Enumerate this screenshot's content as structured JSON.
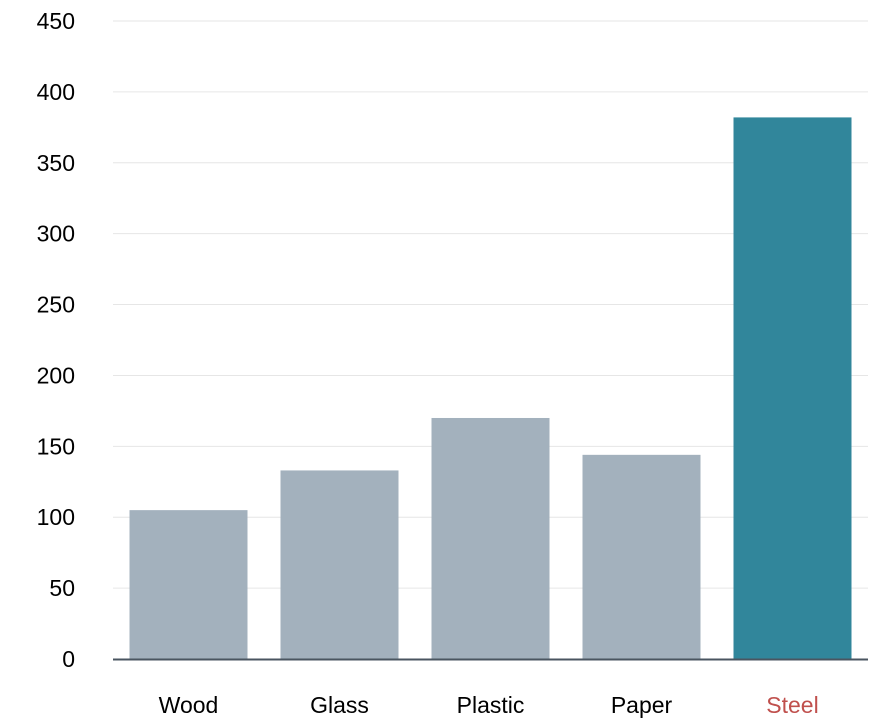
{
  "chart_data": {
    "type": "bar",
    "categories": [
      "Wood",
      "Glass",
      "Plastic",
      "Paper",
      "Steel"
    ],
    "values": [
      105,
      133,
      170,
      144,
      382
    ],
    "ylim": [
      0,
      450
    ],
    "yticks": [
      0,
      50,
      100,
      150,
      200,
      250,
      300,
      350,
      400,
      450
    ],
    "grid": true,
    "highlight_index": 4,
    "colors": {
      "bar_default": "#a3b1bd",
      "bar_highlight": "#31869b",
      "label_default": "#000000",
      "label_highlight": "#c0504d",
      "grid": "#e6e6e6",
      "axis": "#4a5560"
    }
  }
}
